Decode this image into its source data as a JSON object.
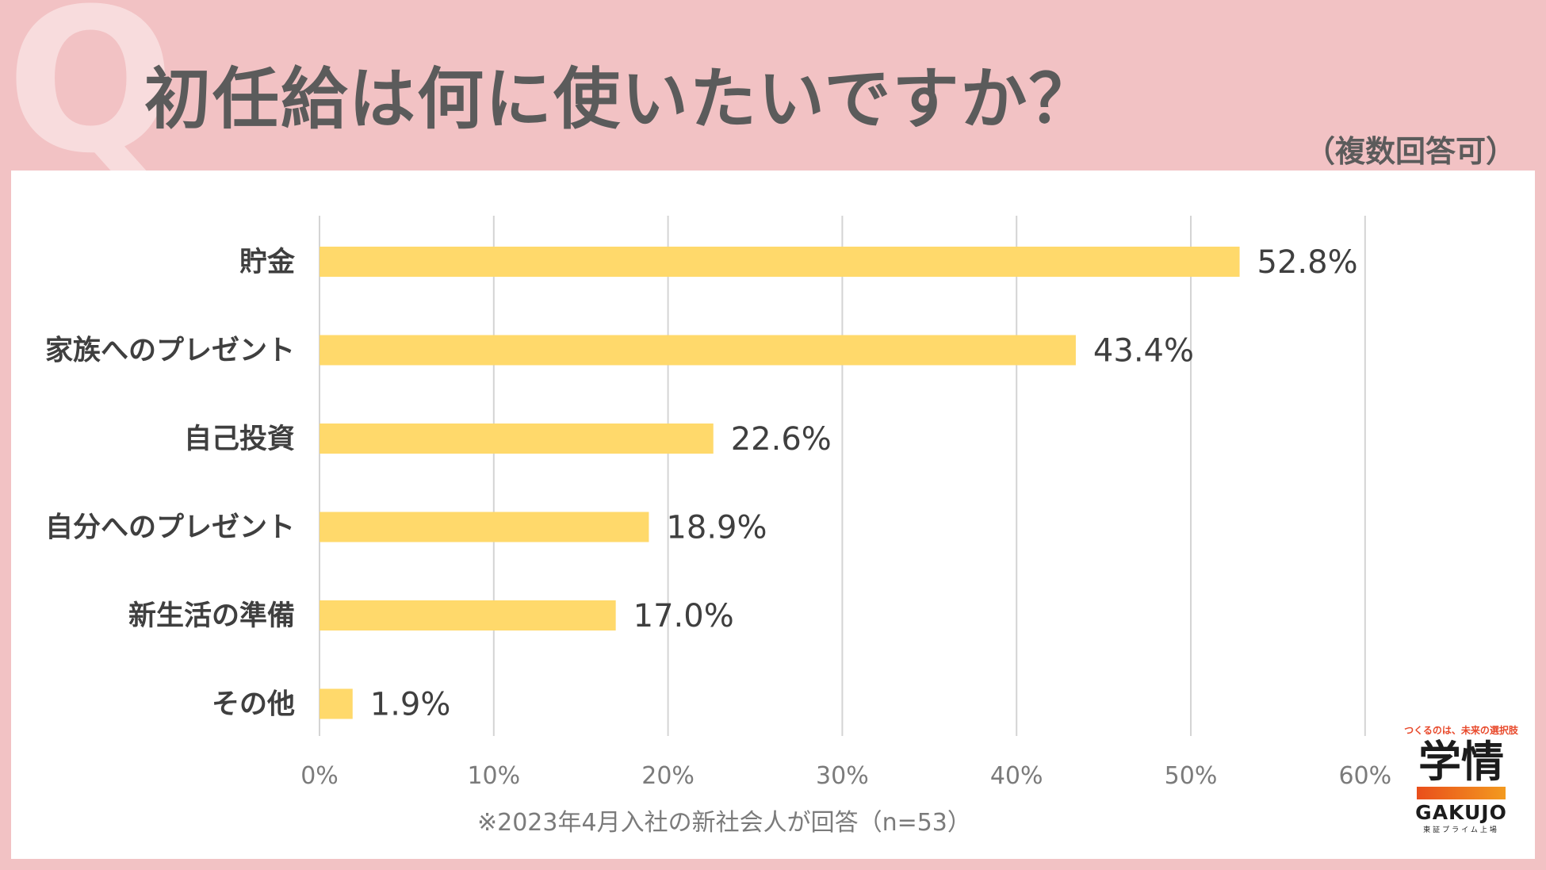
{
  "header": {
    "q_mark": "Q",
    "title": "初任給は何に使いたいですか？",
    "subtitle": "（複数回答可）"
  },
  "chart_data": {
    "type": "bar",
    "orientation": "horizontal",
    "title": "初任給は何に使いたいですか？",
    "categories": [
      "貯金",
      "家族へのプレゼント",
      "自己投資",
      "自分へのプレゼント",
      "新生活の準備",
      "その他"
    ],
    "values": [
      52.8,
      43.4,
      22.6,
      18.9,
      17.0,
      1.9
    ],
    "value_labels": [
      "52.8%",
      "43.4%",
      "22.6%",
      "18.9%",
      "17.0%",
      "1.9%"
    ],
    "x_ticks": [
      "0%",
      "10%",
      "20%",
      "30%",
      "40%",
      "50%",
      "60%"
    ],
    "xlim": [
      0,
      60
    ],
    "grid": true,
    "bar_color": "#ffd96b"
  },
  "footnote": "※2023年4月入社の新社会人が回答（n=53）",
  "logo": {
    "tagline": "つくるのは、未来の選択肢",
    "kanji": "学情",
    "english": "GAKUJO",
    "listed": "東証プライム上場"
  },
  "colors": {
    "background": "#f2c2c4",
    "panel": "#ffffff",
    "text": "#5b5b5b",
    "bar": "#ffd96b",
    "gridline": "#d4d4d4",
    "accent": "#e94e1b"
  }
}
